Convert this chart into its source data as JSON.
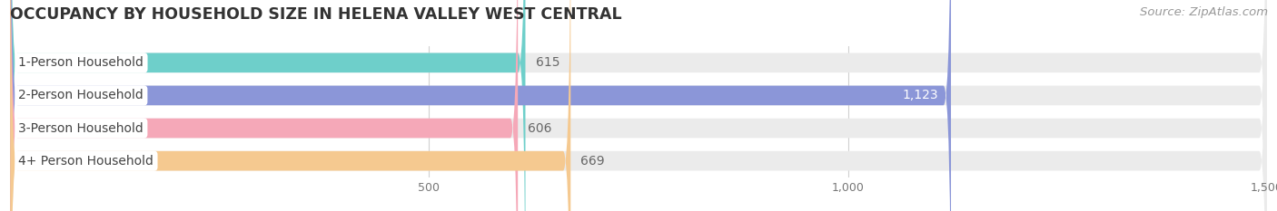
{
  "title": "OCCUPANCY BY HOUSEHOLD SIZE IN HELENA VALLEY WEST CENTRAL",
  "source": "Source: ZipAtlas.com",
  "categories": [
    "1-Person Household",
    "2-Person Household",
    "3-Person Household",
    "4+ Person Household"
  ],
  "values": [
    615,
    1123,
    606,
    669
  ],
  "bar_colors": [
    "#6ecfca",
    "#8b96d8",
    "#f5a8b8",
    "#f5c990"
  ],
  "label_colors": [
    "#555555",
    "#ffffff",
    "#555555",
    "#555555"
  ],
  "data_label_colors": [
    "#666666",
    "#ffffff",
    "#666666",
    "#666666"
  ],
  "xlim": [
    0,
    1500
  ],
  "xticks": [
    500,
    1000,
    1500
  ],
  "background_color": "#ffffff",
  "bar_bg_color": "#ebebeb",
  "title_fontsize": 12.5,
  "label_fontsize": 10,
  "value_fontsize": 10,
  "source_fontsize": 9.5
}
